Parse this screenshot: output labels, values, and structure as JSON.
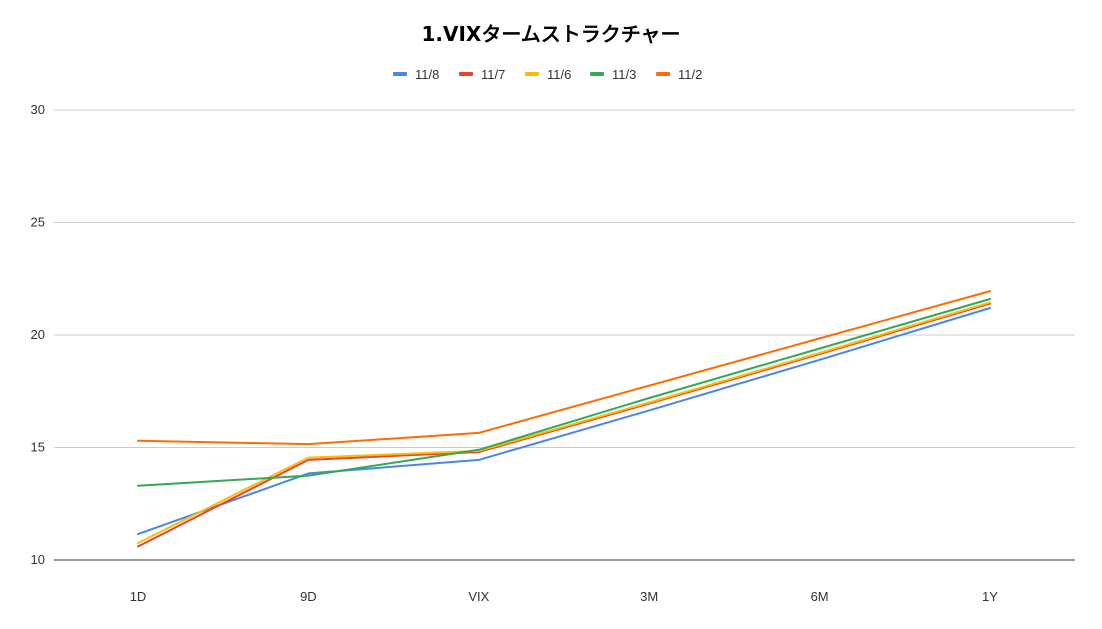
{
  "chart_data": {
    "type": "line",
    "title": "1.VIXタームストラクチャー",
    "categories": [
      "1D",
      "9D",
      "VIX",
      "3M",
      "6M",
      "1Y"
    ],
    "ylim": [
      10,
      30
    ],
    "yticks": [
      "10",
      "15",
      "20",
      "25",
      "30"
    ],
    "grid": true,
    "legend_position": "top",
    "series": [
      {
        "name": "11/8",
        "color": "#4a86e8",
        "values": [
          11.15,
          13.85,
          14.45,
          16.65,
          18.9,
          21.2
        ]
      },
      {
        "name": "11/7",
        "color": "#e84335",
        "values": [
          10.6,
          14.45,
          14.8,
          16.95,
          19.15,
          21.4
        ]
      },
      {
        "name": "11/6",
        "color": "#fbbc04",
        "values": [
          10.75,
          14.55,
          14.85,
          17.0,
          19.2,
          21.45
        ]
      },
      {
        "name": "11/3",
        "color": "#34a853",
        "values": [
          13.3,
          13.75,
          14.9,
          17.2,
          19.4,
          21.6
        ]
      },
      {
        "name": "11/2",
        "color": "#ff6d01",
        "values": [
          15.3,
          15.15,
          15.65,
          17.75,
          19.85,
          21.95
        ]
      }
    ]
  }
}
